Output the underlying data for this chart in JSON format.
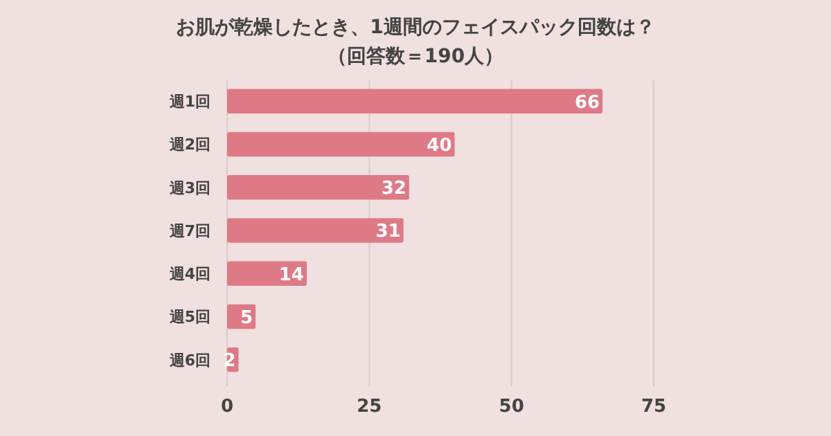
{
  "chart_data": {
    "type": "bar",
    "orientation": "horizontal",
    "title": "お肌が乾燥したとき、1週間のフェイスパック回数は？",
    "subtitle": "（回答数＝190人）",
    "categories": [
      "週1回",
      "週2回",
      "週3回",
      "週7回",
      "週4回",
      "週5回",
      "週6回"
    ],
    "values": [
      66,
      40,
      32,
      31,
      14,
      5,
      2
    ],
    "color": "#dd7a86",
    "xlim": [
      0,
      75
    ],
    "xticks": [
      0,
      25,
      50,
      75
    ],
    "grid": "x",
    "data_labels": true
  }
}
